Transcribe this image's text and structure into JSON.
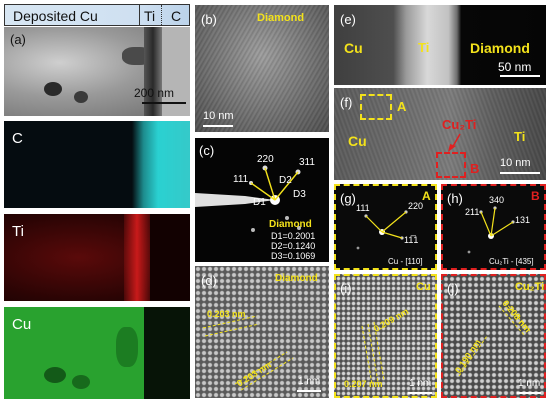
{
  "header": {
    "deposited": "Deposited Cu",
    "ti": "Ti",
    "c": "C"
  },
  "panels": {
    "a": {
      "label": "(a)",
      "scale": "200 nm"
    },
    "map_c": {
      "label": "C"
    },
    "map_ti": {
      "label": "Ti"
    },
    "map_cu": {
      "label": "Cu"
    },
    "b": {
      "label": "(b)",
      "title": "Diamond",
      "scale": "10 nm"
    },
    "c": {
      "label": "(c)",
      "title": "Diamond",
      "spots": [
        "220",
        "311",
        "111",
        "D1",
        "D2",
        "D3"
      ],
      "d_values": [
        "D1=0.2001",
        "D2=0.1240",
        "D3=0.1069"
      ]
    },
    "d": {
      "label": "(d)",
      "title": "Diamond",
      "spacings": [
        "0.203 nm",
        "0.203 nm"
      ],
      "scale": "1 nm"
    },
    "e": {
      "label": "(e)",
      "cu": "Cu",
      "ti": "Ti",
      "diamond": "Diamond",
      "scale": "50 nm"
    },
    "f": {
      "label": "(f)",
      "box_a": "A",
      "cu": "Cu",
      "cu2ti": "Cu₂Ti",
      "ti": "Ti",
      "box_b": "B",
      "scale": "10 nm"
    },
    "g": {
      "label": "(g)",
      "tag": "A",
      "spots": [
        "111",
        "220",
        "11̅1"
      ],
      "zone": "Cu - [110]"
    },
    "h": {
      "label": "(h)",
      "tag": "B",
      "spots": [
        "340",
        "211",
        "131"
      ],
      "zone": "Cu₂Ti - [435]"
    },
    "i": {
      "label": "(i)",
      "title": "Cu",
      "spacings": [
        "0.209 nm",
        "0.207 nm"
      ],
      "scale": "1 nm"
    },
    "j": {
      "label": "(j)",
      "title": "Cu₂Ti",
      "spacings": [
        "0.208 nm",
        "0.190 nm"
      ],
      "scale": "1 nm"
    }
  },
  "colors": {
    "label_yellow": "#f3e21b",
    "marker_red": "#e02020",
    "map_c": "#2ad1d1",
    "map_ti": "#d21a1a",
    "map_cu": "#2fb02f"
  }
}
